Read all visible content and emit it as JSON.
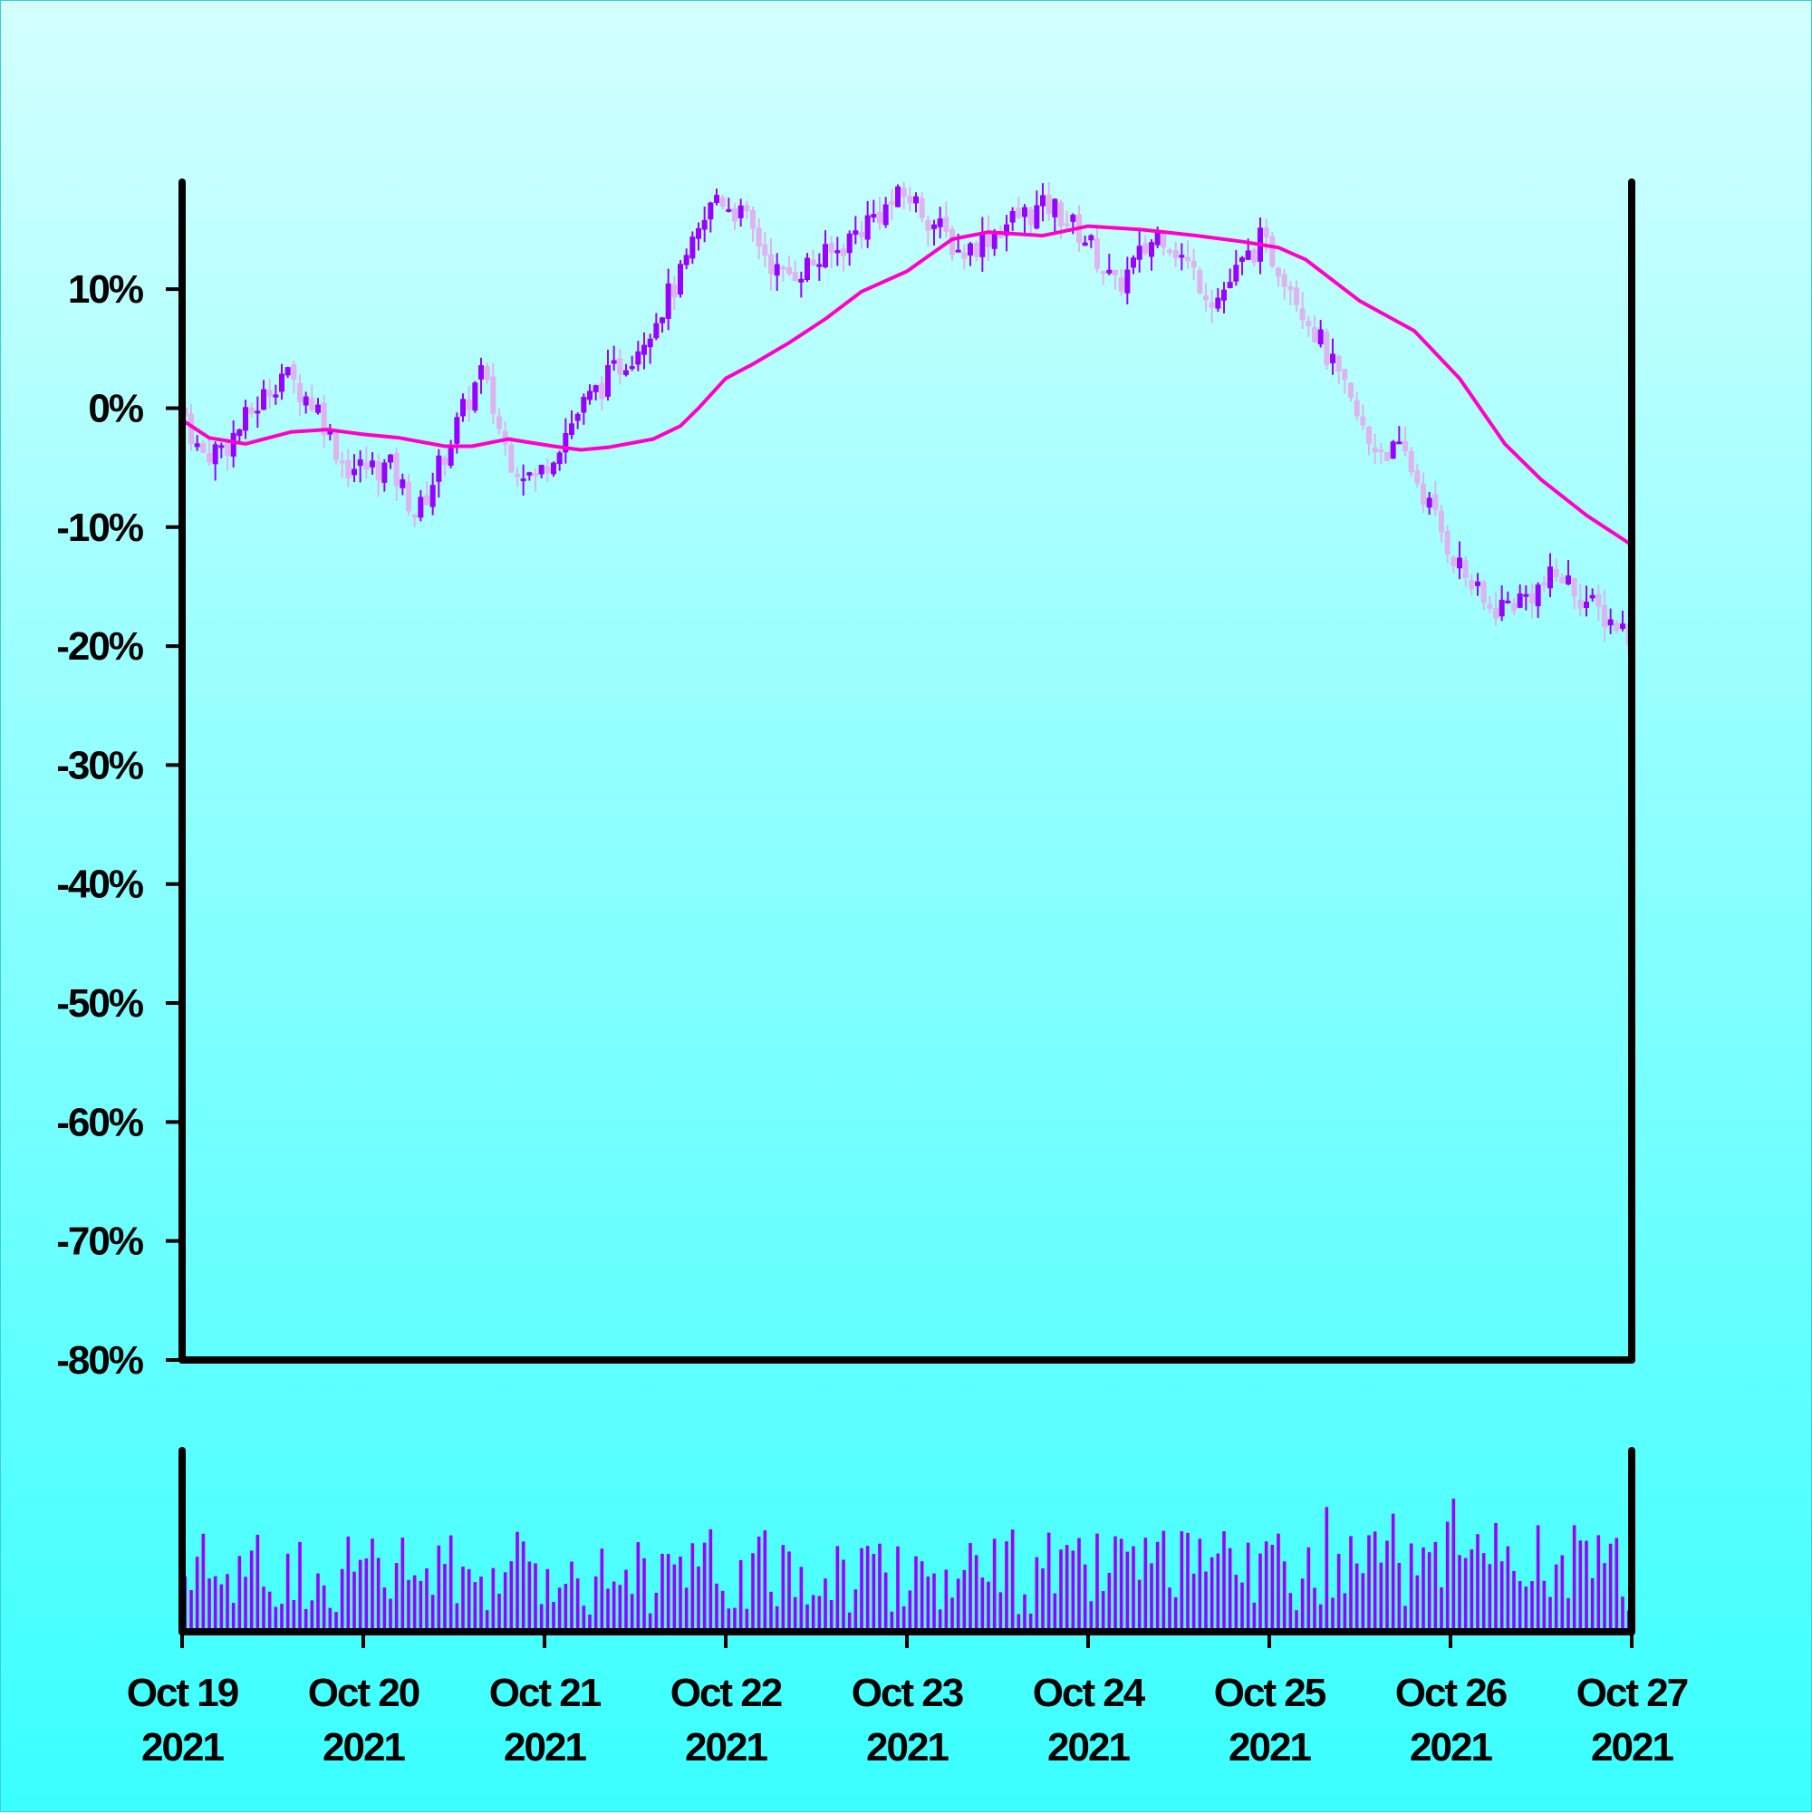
{
  "chart_data": {
    "type": "candlestick",
    "title": "",
    "xlabel": "",
    "ylabel": "",
    "y_tick_labels": [
      "10%",
      "0%",
      "-10%",
      "-20%",
      "-30%",
      "-40%",
      "-50%",
      "-60%",
      "-70%",
      "-80%"
    ],
    "y_tick_values": [
      10,
      0,
      -10,
      -20,
      -30,
      -40,
      -50,
      -60,
      -70,
      -80
    ],
    "ylim": [
      -80,
      19
    ],
    "x_tick_labels": [
      {
        "line1": "Oct 19",
        "line2": "2021"
      },
      {
        "line1": "Oct 20",
        "line2": "2021"
      },
      {
        "line1": "Oct 21",
        "line2": "2021"
      },
      {
        "line1": "Oct 22",
        "line2": "2021"
      },
      {
        "line1": "Oct 23",
        "line2": "2021"
      },
      {
        "line1": "Oct 24",
        "line2": "2021"
      },
      {
        "line1": "Oct 25",
        "line2": "2021"
      },
      {
        "line1": "Oct 26",
        "line2": "2021"
      },
      {
        "line1": "Oct 27",
        "line2": "2021"
      }
    ],
    "xlim": [
      "2021-10-19",
      "2021-10-27"
    ],
    "close_path": [
      {
        "day": 0.0,
        "y": 0
      },
      {
        "day": 0.1,
        "y": -4
      },
      {
        "day": 0.25,
        "y": -3
      },
      {
        "day": 0.55,
        "y": 3
      },
      {
        "day": 0.75,
        "y": 0
      },
      {
        "day": 0.9,
        "y": -5
      },
      {
        "day": 1.15,
        "y": -5
      },
      {
        "day": 1.3,
        "y": -9
      },
      {
        "day": 1.5,
        "y": -2
      },
      {
        "day": 1.65,
        "y": 3
      },
      {
        "day": 1.8,
        "y": -4
      },
      {
        "day": 1.95,
        "y": -6
      },
      {
        "day": 2.2,
        "y": 0
      },
      {
        "day": 2.5,
        "y": 5
      },
      {
        "day": 2.75,
        "y": 11
      },
      {
        "day": 2.95,
        "y": 18
      },
      {
        "day": 3.1,
        "y": 16
      },
      {
        "day": 3.3,
        "y": 11
      },
      {
        "day": 3.6,
        "y": 13
      },
      {
        "day": 3.8,
        "y": 16
      },
      {
        "day": 4.0,
        "y": 18
      },
      {
        "day": 4.3,
        "y": 13
      },
      {
        "day": 4.6,
        "y": 16
      },
      {
        "day": 4.8,
        "y": 17
      },
      {
        "day": 5.0,
        "y": 14
      },
      {
        "day": 5.15,
        "y": 10
      },
      {
        "day": 5.4,
        "y": 15
      },
      {
        "day": 5.7,
        "y": 9
      },
      {
        "day": 5.95,
        "y": 14
      },
      {
        "day": 6.1,
        "y": 11
      },
      {
        "day": 6.3,
        "y": 5
      },
      {
        "day": 6.55,
        "y": -3
      },
      {
        "day": 6.75,
        "y": -4
      },
      {
        "day": 7.0,
        "y": -12
      },
      {
        "day": 7.2,
        "y": -17
      },
      {
        "day": 7.4,
        "y": -16
      },
      {
        "day": 7.6,
        "y": -14
      },
      {
        "day": 7.8,
        "y": -17
      },
      {
        "day": 8.0,
        "y": -19
      }
    ],
    "moving_average": [
      {
        "day": 0.0,
        "y": -1
      },
      {
        "day": 0.15,
        "y": -2.5
      },
      {
        "day": 0.35,
        "y": -3
      },
      {
        "day": 0.6,
        "y": -2
      },
      {
        "day": 0.8,
        "y": -1.8
      },
      {
        "day": 1.0,
        "y": -2.2
      },
      {
        "day": 1.2,
        "y": -2.5
      },
      {
        "day": 1.45,
        "y": -3.2
      },
      {
        "day": 1.6,
        "y": -3.2
      },
      {
        "day": 1.8,
        "y": -2.6
      },
      {
        "day": 2.05,
        "y": -3.2
      },
      {
        "day": 2.2,
        "y": -3.5
      },
      {
        "day": 2.35,
        "y": -3.3
      },
      {
        "day": 2.6,
        "y": -2.6
      },
      {
        "day": 2.75,
        "y": -1.5
      },
      {
        "day": 2.85,
        "y": 0
      },
      {
        "day": 3.0,
        "y": 2.5
      },
      {
        "day": 3.15,
        "y": 3.7
      },
      {
        "day": 3.35,
        "y": 5.5
      },
      {
        "day": 3.55,
        "y": 7.5
      },
      {
        "day": 3.75,
        "y": 9.8
      },
      {
        "day": 4.0,
        "y": 11.5
      },
      {
        "day": 4.25,
        "y": 14.2
      },
      {
        "day": 4.45,
        "y": 14.8
      },
      {
        "day": 4.75,
        "y": 14.5
      },
      {
        "day": 5.0,
        "y": 15.3
      },
      {
        "day": 5.3,
        "y": 15.0
      },
      {
        "day": 5.6,
        "y": 14.5
      },
      {
        "day": 5.85,
        "y": 14.0
      },
      {
        "day": 6.05,
        "y": 13.5
      },
      {
        "day": 6.2,
        "y": 12.5
      },
      {
        "day": 6.5,
        "y": 9.0
      },
      {
        "day": 6.8,
        "y": 6.5
      },
      {
        "day": 7.05,
        "y": 2.5
      },
      {
        "day": 7.3,
        "y": -3.0
      },
      {
        "day": 7.5,
        "y": -6.0
      },
      {
        "day": 7.75,
        "y": -9.0
      },
      {
        "day": 8.0,
        "y": -11.5
      }
    ],
    "colors": {
      "up": "#9900ff",
      "down": "#ddb3f0",
      "moving_average": "#ff00cc",
      "volume": "#9900ff",
      "axis": "#000000"
    },
    "grid": false,
    "legend": "none"
  }
}
